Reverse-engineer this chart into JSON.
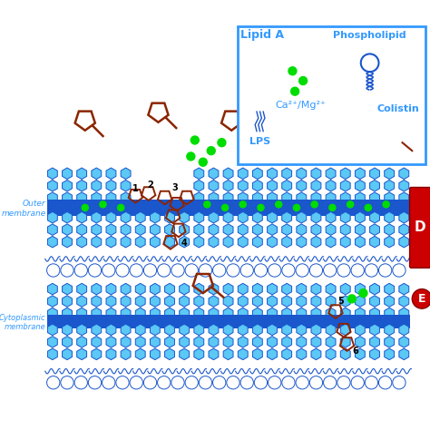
{
  "bg_color": "#ffffff",
  "lc": "#5bc8f5",
  "ld": "#1a56cc",
  "pc": "#8b2500",
  "gd": "#00dd00",
  "rc": "#cc0000",
  "lbox": "#3399ff",
  "lipid_a_label": "Lipid A",
  "lps_label": "LPS",
  "ca_mg_label": "Ca²⁺/Mg²⁺",
  "phospholipid_label": "Phospholipid",
  "colistin_label": "Colistin",
  "outer_label": "Outer\nmembrane",
  "inner_label": "Cytoplasmic\nmembrane",
  "label_D": "D",
  "label_E": "E",
  "numbers": [
    "1",
    "2",
    "3",
    "4",
    "5",
    "6"
  ]
}
